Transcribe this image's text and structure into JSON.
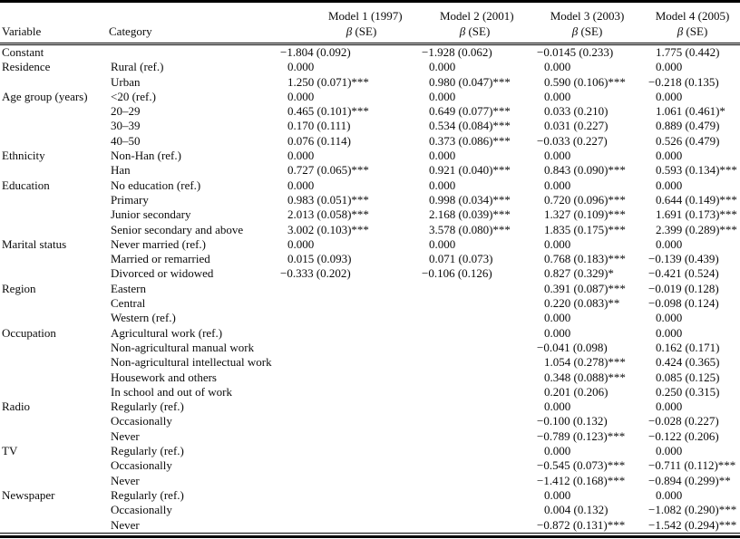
{
  "colors": {
    "text": "#0a0a0a",
    "background": "#ffffff",
    "rule": "#000000"
  },
  "table": {
    "col_headers": {
      "variable": "Variable",
      "category": "Category",
      "models": [
        {
          "title": "Model 1 (1997)",
          "beta": "β",
          "se": "(SE)"
        },
        {
          "title": "Model 2 (2001)",
          "beta": "β",
          "se": "(SE)"
        },
        {
          "title": "Model 3 (2003)",
          "beta": "β",
          "se": "(SE)"
        },
        {
          "title": "Model 4 (2005)",
          "beta": "β",
          "se": "(SE)"
        }
      ]
    },
    "rows": [
      {
        "variable": "Constant",
        "category": "",
        "values": [
          "−1.804 (0.092)",
          "−1.928 (0.062)",
          "−0.0145 (0.233)",
          "1.775 (0.442)"
        ]
      },
      {
        "variable": "Residence",
        "category": "Rural (ref.)",
        "values": [
          "0.000",
          "0.000",
          "0.000",
          "0.000"
        ]
      },
      {
        "variable": "",
        "category": "Urban",
        "values": [
          "1.250 (0.071)***",
          "0.980 (0.047)***",
          "0.590 (0.106)***",
          "−0.218 (0.135)"
        ]
      },
      {
        "variable": "Age group (years)",
        "category": "<20 (ref.)",
        "values": [
          "0.000",
          "0.000",
          "0.000",
          "0.000"
        ]
      },
      {
        "variable": "",
        "category": "20–29",
        "values": [
          "0.465 (0.101)***",
          "0.649 (0.077)***",
          "0.033 (0.210)",
          "1.061 (0.461)*"
        ]
      },
      {
        "variable": "",
        "category": "30–39",
        "values": [
          "0.170 (0.111)",
          "0.534 (0.084)***",
          "0.031 (0.227)",
          "0.889 (0.479)"
        ]
      },
      {
        "variable": "",
        "category": "40–50",
        "values": [
          "0.076 (0.114)",
          "0.373 (0.086)***",
          "−0.033 (0.227)",
          "0.526 (0.479)"
        ]
      },
      {
        "variable": "Ethnicity",
        "category": "Non-Han (ref.)",
        "values": [
          "0.000",
          "0.000",
          "0.000",
          "0.000"
        ]
      },
      {
        "variable": "",
        "category": "Han",
        "values": [
          "0.727 (0.065)***",
          "0.921 (0.040)***",
          "0.843 (0.090)***",
          "0.593 (0.134)***"
        ]
      },
      {
        "variable": "Education",
        "category": "No education (ref.)",
        "values": [
          "0.000",
          "0.000",
          "0.000",
          "0.000"
        ]
      },
      {
        "variable": "",
        "category": "Primary",
        "values": [
          "0.983 (0.051)***",
          "0.998 (0.034)***",
          "0.720 (0.096)***",
          "0.644 (0.149)***"
        ]
      },
      {
        "variable": "",
        "category": "Junior secondary",
        "values": [
          "2.013 (0.058)***",
          "2.168 (0.039)***",
          "1.327 (0.109)***",
          "1.691 (0.173)***"
        ]
      },
      {
        "variable": "",
        "category": "Senior secondary and above",
        "values": [
          "3.002 (0.103)***",
          "3.578 (0.080)***",
          "1.835 (0.175)***",
          "2.399 (0.289)***"
        ]
      },
      {
        "variable": "Marital status",
        "category": "Never married (ref.)",
        "values": [
          "0.000",
          "0.000",
          "0.000",
          "0.000"
        ]
      },
      {
        "variable": "",
        "category": "Married or remarried",
        "values": [
          "0.015 (0.093)",
          "0.071 (0.073)",
          "0.768 (0.183)***",
          "−0.139 (0.439)"
        ]
      },
      {
        "variable": "",
        "category": "Divorced or widowed",
        "values": [
          "−0.333 (0.202)",
          "−0.106 (0.126)",
          "0.827 (0.329)*",
          "−0.421 (0.524)"
        ]
      },
      {
        "variable": "Region",
        "category": "Eastern",
        "values": [
          "",
          "",
          "0.391 (0.087)***",
          "−0.019 (0.128)"
        ]
      },
      {
        "variable": "",
        "category": "Central",
        "values": [
          "",
          "",
          "0.220 (0.083)**",
          "−0.098 (0.124)"
        ]
      },
      {
        "variable": "",
        "category": "Western (ref.)",
        "values": [
          "",
          "",
          "0.000",
          "0.000"
        ]
      },
      {
        "variable": "Occupation",
        "category": "Agricultural work (ref.)",
        "values": [
          "",
          "",
          "0.000",
          "0.000"
        ]
      },
      {
        "variable": "",
        "category": "Non-agricultural manual work",
        "values": [
          "",
          "",
          "−0.041 (0.098)",
          "0.162 (0.171)"
        ]
      },
      {
        "variable": "",
        "category": "Non-agricultural intellectual work",
        "values": [
          "",
          "",
          "1.054 (0.278)***",
          "0.424 (0.365)"
        ]
      },
      {
        "variable": "",
        "category": "Housework and others",
        "values": [
          "",
          "",
          "0.348 (0.088)***",
          "0.085 (0.125)"
        ]
      },
      {
        "variable": "",
        "category": "In school and out of work",
        "values": [
          "",
          "",
          "0.201 (0.206)",
          "0.250 (0.315)"
        ]
      },
      {
        "variable": "Radio",
        "category": "Regularly (ref.)",
        "values": [
          "",
          "",
          "0.000",
          "0.000"
        ]
      },
      {
        "variable": "",
        "category": "Occasionally",
        "values": [
          "",
          "",
          "−0.100 (0.132)",
          "−0.028 (0.227)"
        ]
      },
      {
        "variable": "",
        "category": "Never",
        "values": [
          "",
          "",
          "−0.789 (0.123)***",
          "−0.122 (0.206)"
        ]
      },
      {
        "variable": "TV",
        "category": "Regularly (ref.)",
        "values": [
          "",
          "",
          "0.000",
          "0.000"
        ]
      },
      {
        "variable": "",
        "category": "Occasionally",
        "values": [
          "",
          "",
          "−0.545 (0.073)***",
          "−0.711 (0.112)***"
        ]
      },
      {
        "variable": "",
        "category": "Never",
        "values": [
          "",
          "",
          "−1.412 (0.168)***",
          "−0.894 (0.299)**"
        ]
      },
      {
        "variable": "Newspaper",
        "category": "Regularly (ref.)",
        "values": [
          "",
          "",
          "0.000",
          "0.000"
        ]
      },
      {
        "variable": "",
        "category": "Occasionally",
        "values": [
          "",
          "",
          "0.004 (0.132)",
          "−1.082 (0.290)***"
        ]
      },
      {
        "variable": "",
        "category": "Never",
        "values": [
          "",
          "",
          "−0.872 (0.131)***",
          "−1.542 (0.294)***"
        ]
      }
    ]
  }
}
